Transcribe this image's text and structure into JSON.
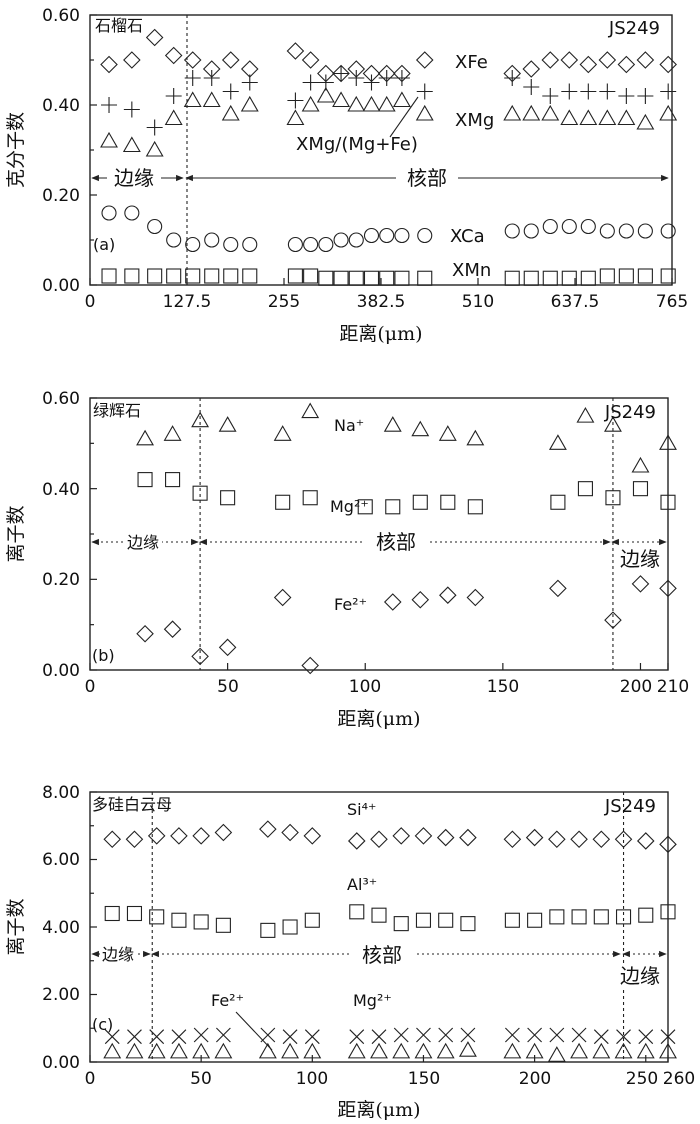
{
  "chart_data": [
    {
      "type": "scatter",
      "panel_label": "(a)",
      "mineral": "石榴石",
      "sample": "JS249",
      "xlabel": "距离(μm)",
      "ylabel": "克分子数",
      "xlim": [
        0,
        765
      ],
      "ylim": [
        0,
        0.6
      ],
      "xticks": [
        "0",
        "127.5",
        "255",
        "382.5",
        "510",
        "637.5",
        "765"
      ],
      "yticks": [
        "0.00",
        "0.20",
        "0.40",
        "0.60"
      ],
      "grid": false,
      "boundary_x": [
        127.5
      ],
      "zones": [
        {
          "label": "边缘",
          "from": 0,
          "to": 127.5
        },
        {
          "label": "核部",
          "from": 127.5,
          "to": 765
        }
      ],
      "series": [
        {
          "name": "XFe",
          "marker": "diamond",
          "x": [
            25,
            55,
            85,
            110,
            135,
            160,
            185,
            210,
            270,
            290,
            310,
            330,
            350,
            370,
            390,
            410,
            440,
            555,
            580,
            605,
            630,
            655,
            680,
            705,
            730,
            760
          ],
          "y": [
            0.49,
            0.5,
            0.55,
            0.51,
            0.5,
            0.48,
            0.5,
            0.48,
            0.52,
            0.5,
            0.47,
            0.47,
            0.48,
            0.47,
            0.47,
            0.47,
            0.5,
            0.47,
            0.48,
            0.5,
            0.5,
            0.49,
            0.5,
            0.49,
            0.5,
            0.49
          ]
        },
        {
          "name": "XMg/(Mg+Fe)",
          "marker": "plus",
          "x": [
            25,
            55,
            85,
            110,
            135,
            160,
            185,
            210,
            270,
            290,
            310,
            330,
            350,
            370,
            390,
            410,
            440,
            555,
            580,
            605,
            630,
            655,
            680,
            705,
            730,
            760
          ],
          "y": [
            0.4,
            0.39,
            0.35,
            0.42,
            0.46,
            0.46,
            0.43,
            0.45,
            0.41,
            0.45,
            0.45,
            0.47,
            0.46,
            0.45,
            0.46,
            0.46,
            0.43,
            0.46,
            0.44,
            0.42,
            0.43,
            0.43,
            0.43,
            0.42,
            0.42,
            0.43
          ]
        },
        {
          "name": "XMg",
          "marker": "triangle",
          "x": [
            25,
            55,
            85,
            110,
            135,
            160,
            185,
            210,
            270,
            290,
            310,
            330,
            350,
            370,
            390,
            410,
            440,
            555,
            580,
            605,
            630,
            655,
            680,
            705,
            730,
            760
          ],
          "y": [
            0.32,
            0.31,
            0.3,
            0.37,
            0.41,
            0.41,
            0.38,
            0.4,
            0.37,
            0.4,
            0.42,
            0.41,
            0.4,
            0.4,
            0.4,
            0.41,
            0.38,
            0.38,
            0.38,
            0.38,
            0.37,
            0.37,
            0.37,
            0.37,
            0.36,
            0.38
          ]
        },
        {
          "name": "XCa",
          "marker": "circle",
          "x": [
            25,
            55,
            85,
            110,
            135,
            160,
            185,
            210,
            270,
            290,
            310,
            330,
            350,
            370,
            390,
            410,
            440,
            555,
            580,
            605,
            630,
            655,
            680,
            705,
            730,
            760
          ],
          "y": [
            0.16,
            0.16,
            0.13,
            0.1,
            0.09,
            0.1,
            0.09,
            0.09,
            0.09,
            0.09,
            0.09,
            0.1,
            0.1,
            0.11,
            0.11,
            0.11,
            0.11,
            0.12,
            0.12,
            0.13,
            0.13,
            0.13,
            0.12,
            0.12,
            0.12,
            0.12
          ]
        },
        {
          "name": "XMn",
          "marker": "square",
          "x": [
            25,
            55,
            85,
            110,
            135,
            160,
            185,
            210,
            270,
            290,
            310,
            330,
            350,
            370,
            390,
            410,
            440,
            555,
            580,
            605,
            630,
            655,
            680,
            705,
            730,
            760
          ],
          "y": [
            0.02,
            0.02,
            0.02,
            0.02,
            0.02,
            0.02,
            0.02,
            0.02,
            0.02,
            0.02,
            0.015,
            0.015,
            0.015,
            0.015,
            0.015,
            0.015,
            0.015,
            0.015,
            0.015,
            0.015,
            0.015,
            0.015,
            0.02,
            0.02,
            0.02,
            0.02
          ]
        }
      ]
    },
    {
      "type": "scatter",
      "panel_label": "(b)",
      "mineral": "绿辉石",
      "sample": "JS249",
      "xlabel": "距离(μm)",
      "ylabel": "离子数",
      "xlim": [
        0,
        210
      ],
      "ylim": [
        0,
        0.6
      ],
      "xticks": [
        "0",
        "50",
        "100",
        "150",
        "200",
        "210"
      ],
      "yticks": [
        "0.00",
        "0.20",
        "0.40",
        "0.60"
      ],
      "grid": false,
      "boundary_x": [
        40,
        190
      ],
      "zones": [
        {
          "label": "边缘",
          "from": 0,
          "to": 40
        },
        {
          "label": "核部",
          "from": 40,
          "to": 190
        },
        {
          "label": "边缘",
          "from": 190,
          "to": 210
        }
      ],
      "series": [
        {
          "name": "Na⁺",
          "marker": "triangle",
          "x": [
            20,
            30,
            40,
            50,
            70,
            80,
            110,
            120,
            130,
            140,
            170,
            180,
            190,
            200,
            210
          ],
          "y": [
            0.51,
            0.52,
            0.55,
            0.54,
            0.52,
            0.57,
            0.54,
            0.53,
            0.52,
            0.51,
            0.5,
            0.56,
            0.54,
            0.45,
            0.5
          ]
        },
        {
          "name": "Mg²⁺",
          "marker": "square",
          "x": [
            20,
            30,
            40,
            50,
            70,
            80,
            100,
            110,
            120,
            130,
            140,
            170,
            180,
            190,
            200,
            210
          ],
          "y": [
            0.42,
            0.42,
            0.39,
            0.38,
            0.37,
            0.38,
            0.36,
            0.36,
            0.37,
            0.37,
            0.36,
            0.37,
            0.4,
            0.38,
            0.4,
            0.37
          ]
        },
        {
          "name": "Fe²⁺",
          "marker": "diamond",
          "x": [
            20,
            30,
            40,
            50,
            70,
            80,
            110,
            120,
            130,
            140,
            170,
            190,
            200,
            210
          ],
          "y": [
            0.08,
            0.09,
            0.03,
            0.05,
            0.16,
            0.01,
            0.15,
            0.155,
            0.165,
            0.16,
            0.18,
            0.11,
            0.19,
            0.18
          ]
        }
      ]
    },
    {
      "type": "scatter",
      "panel_label": "(c)",
      "mineral": "多硅白云母",
      "sample": "JS249",
      "xlabel": "距离(μm)",
      "ylabel": "离子数",
      "xlim": [
        0,
        260
      ],
      "ylim": [
        0,
        8
      ],
      "xticks": [
        "0",
        "50",
        "100",
        "150",
        "200",
        "250",
        "260"
      ],
      "yticks": [
        "0.00",
        "2.00",
        "4.00",
        "6.00",
        "8.00"
      ],
      "grid": false,
      "boundary_x": [
        28,
        240
      ],
      "zones": [
        {
          "label": "边缘",
          "from": 0,
          "to": 28
        },
        {
          "label": "核部",
          "from": 28,
          "to": 240
        },
        {
          "label": "边缘",
          "from": 240,
          "to": 260
        }
      ],
      "series": [
        {
          "name": "Si⁴⁺",
          "marker": "diamond",
          "x": [
            10,
            20,
            30,
            40,
            50,
            60,
            80,
            90,
            100,
            120,
            130,
            140,
            150,
            160,
            170,
            190,
            200,
            210,
            220,
            230,
            240,
            250,
            260
          ],
          "y": [
            6.6,
            6.6,
            6.7,
            6.7,
            6.7,
            6.8,
            6.9,
            6.8,
            6.7,
            6.55,
            6.6,
            6.7,
            6.7,
            6.65,
            6.65,
            6.6,
            6.65,
            6.6,
            6.6,
            6.6,
            6.6,
            6.55,
            6.45
          ]
        },
        {
          "name": "Al³⁺",
          "marker": "square",
          "x": [
            10,
            20,
            30,
            40,
            50,
            60,
            80,
            90,
            100,
            120,
            130,
            140,
            150,
            160,
            170,
            190,
            200,
            210,
            220,
            230,
            240,
            250,
            260
          ],
          "y": [
            4.4,
            4.4,
            4.3,
            4.2,
            4.15,
            4.05,
            3.9,
            4.0,
            4.2,
            4.45,
            4.35,
            4.1,
            4.2,
            4.2,
            4.1,
            4.2,
            4.2,
            4.3,
            4.3,
            4.3,
            4.3,
            4.35,
            4.45
          ]
        },
        {
          "name": "Mg²⁺",
          "marker": "cross",
          "x": [
            10,
            20,
            30,
            40,
            50,
            60,
            80,
            90,
            100,
            120,
            130,
            140,
            150,
            160,
            170,
            190,
            200,
            210,
            220,
            230,
            240,
            250,
            260
          ],
          "y": [
            0.75,
            0.75,
            0.75,
            0.75,
            0.8,
            0.8,
            0.8,
            0.75,
            0.75,
            0.75,
            0.75,
            0.8,
            0.8,
            0.8,
            0.8,
            0.8,
            0.8,
            0.8,
            0.8,
            0.75,
            0.75,
            0.75,
            0.75
          ]
        },
        {
          "name": "Fe²⁺",
          "marker": "triangle",
          "x": [
            10,
            20,
            30,
            40,
            50,
            60,
            80,
            90,
            100,
            120,
            130,
            140,
            150,
            160,
            170,
            190,
            200,
            210,
            220,
            230,
            240,
            250,
            260
          ],
          "y": [
            0.3,
            0.3,
            0.3,
            0.3,
            0.3,
            0.3,
            0.3,
            0.3,
            0.3,
            0.3,
            0.3,
            0.3,
            0.3,
            0.3,
            0.35,
            0.3,
            0.3,
            0.2,
            0.3,
            0.3,
            0.3,
            0.3,
            0.3
          ]
        }
      ]
    }
  ]
}
